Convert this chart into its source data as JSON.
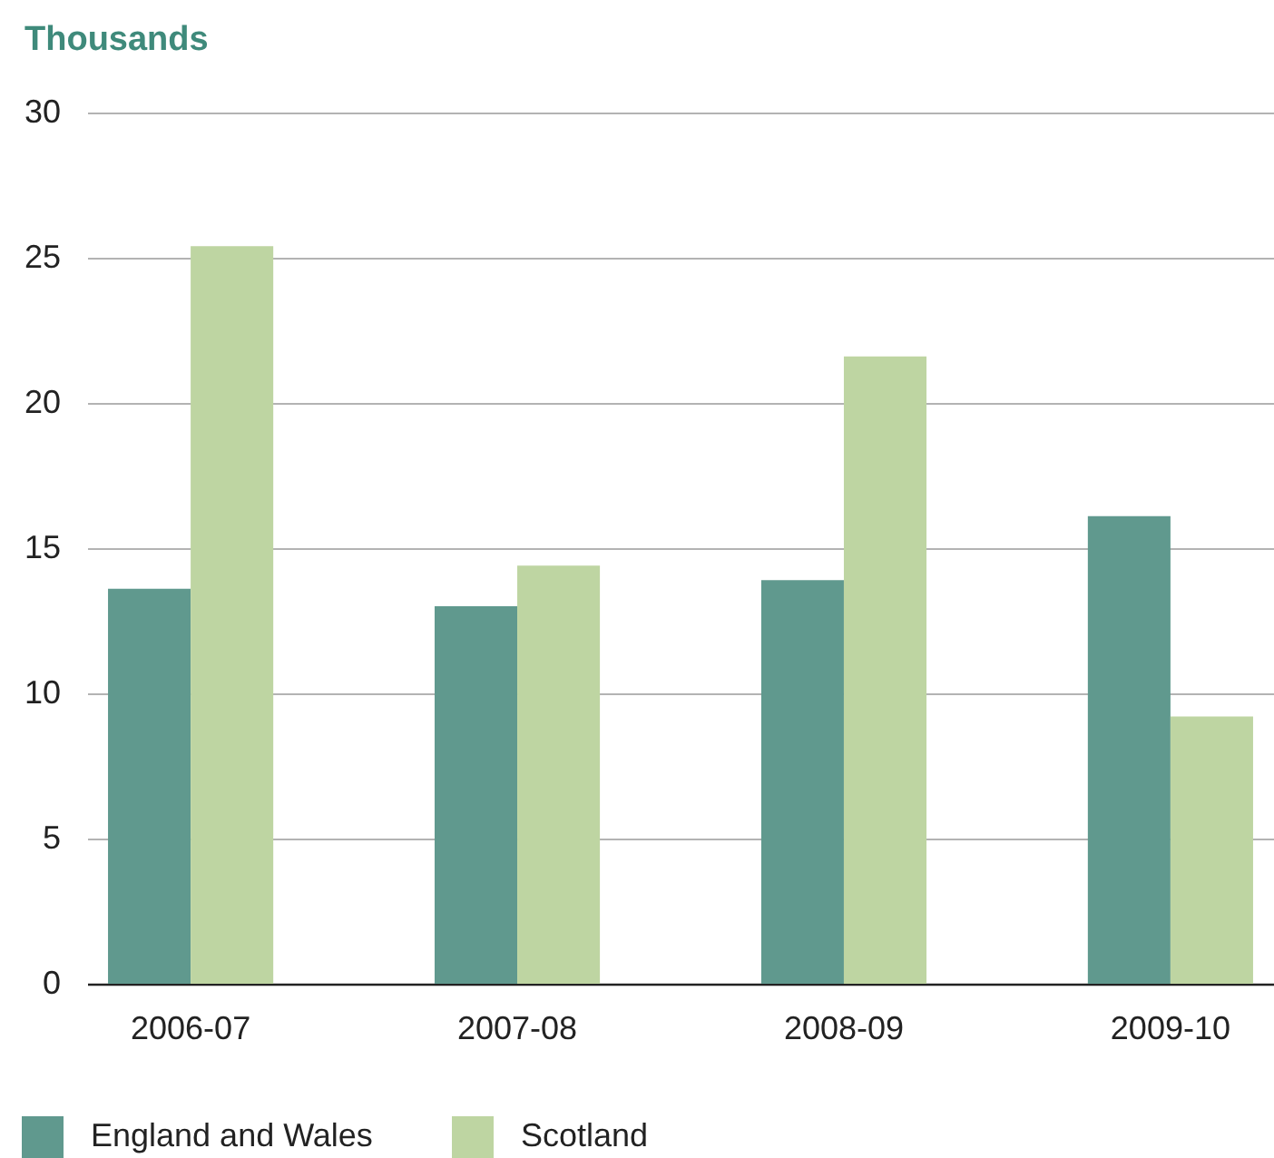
{
  "chart_data": {
    "type": "bar",
    "ylabel": "Thousands",
    "categories": [
      "2006-07",
      "2007-08",
      "2008-09",
      "2009-10"
    ],
    "series": [
      {
        "name": "England and Wales",
        "color": "#60998e",
        "values": [
          13.6,
          13.0,
          13.9,
          16.1
        ]
      },
      {
        "name": "Scotland",
        "color": "#bed5a2",
        "values": [
          25.4,
          14.4,
          21.6,
          9.2
        ]
      }
    ],
    "ylim": [
      0,
      30
    ],
    "yticks": [
      0,
      5,
      10,
      15,
      20,
      25,
      30
    ],
    "grid": "y",
    "legend": "bottom"
  }
}
